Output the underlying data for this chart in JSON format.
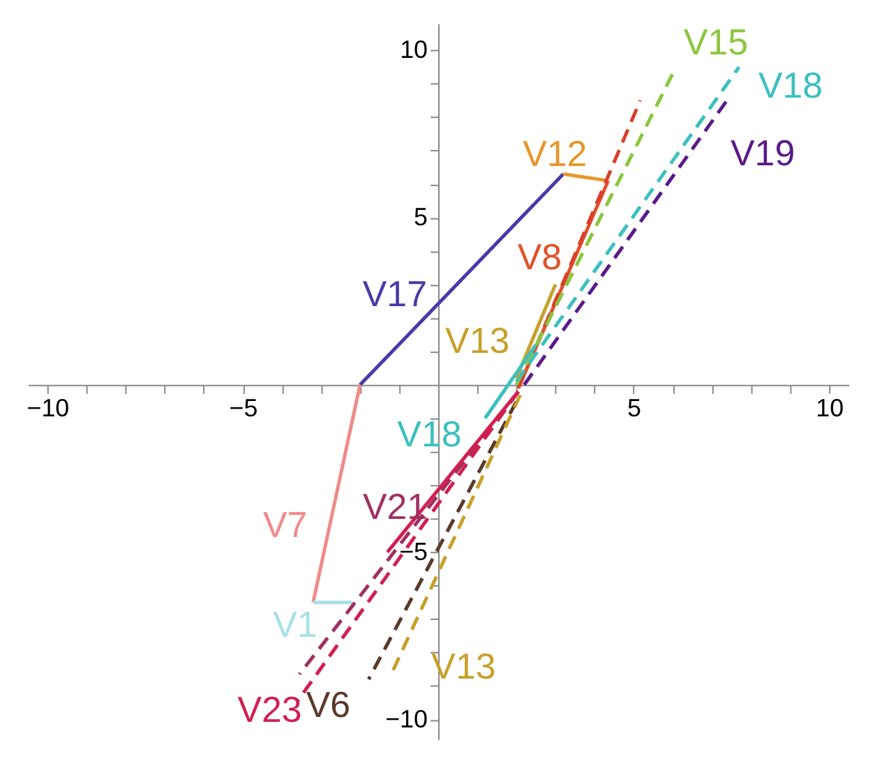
{
  "chart_data": {
    "type": "line",
    "xlim": [
      -10.5,
      10.5
    ],
    "ylim": [
      -10.6,
      10.8
    ],
    "xticks": [
      {
        "value": -10,
        "label": "−10"
      },
      {
        "value": -9,
        "label": null
      },
      {
        "value": -8,
        "label": null
      },
      {
        "value": -7,
        "label": null
      },
      {
        "value": -6,
        "label": null
      },
      {
        "value": -5,
        "label": "−5"
      },
      {
        "value": -4,
        "label": null
      },
      {
        "value": -3,
        "label": null
      },
      {
        "value": -2,
        "label": null
      },
      {
        "value": -1,
        "label": null
      },
      {
        "value": 1,
        "label": null
      },
      {
        "value": 2,
        "label": null
      },
      {
        "value": 3,
        "label": null
      },
      {
        "value": 4,
        "label": null
      },
      5,
      {
        "value": 6,
        "label": null
      },
      {
        "value": 7,
        "label": null
      },
      {
        "value": 8,
        "label": null
      },
      {
        "value": 9,
        "label": null
      },
      10
    ],
    "yticks": [
      {
        "value": -10,
        "label": "−10"
      },
      {
        "value": -9,
        "label": null
      },
      {
        "value": -8,
        "label": null
      },
      {
        "value": -7,
        "label": null
      },
      {
        "value": -6,
        "label": null
      },
      {
        "value": -5,
        "label": "−5"
      },
      {
        "value": -4,
        "label": null
      },
      {
        "value": -3,
        "label": null
      },
      {
        "value": -2,
        "label": null
      },
      {
        "value": -1,
        "label": null
      },
      {
        "value": 1,
        "label": null
      },
      {
        "value": 2,
        "label": null
      },
      {
        "value": 3,
        "label": null
      },
      {
        "value": 4,
        "label": null
      },
      5,
      {
        "value": 6,
        "label": null
      },
      {
        "value": 7,
        "label": null
      },
      {
        "value": 8,
        "label": null
      },
      {
        "value": 9,
        "label": null
      },
      10
    ],
    "grid": false,
    "series": [
      {
        "name": "V17",
        "color": "#4a3aa8",
        "x": [
          -2,
          3.2
        ],
        "values": [
          0,
          6.3
        ],
        "line_style": "solid"
      },
      {
        "name": "V12",
        "color": "#e8962a",
        "x": [
          3.2,
          4.35
        ],
        "values": [
          6.3,
          6.1
        ],
        "line_style": "solid"
      },
      {
        "name": "V8",
        "color": "#e0502a",
        "x": [
          4.35,
          2.05
        ],
        "values": [
          6.1,
          -0.1
        ],
        "line_style": "solid"
      },
      {
        "color": "#d9402a",
        "x": [
          2.05,
          5.17
        ],
        "values": [
          -0.1,
          8.5
        ],
        "line_style": "dashed"
      },
      {
        "name": "V15",
        "color": "#8cc63e",
        "x": [
          2.0,
          6.0
        ],
        "values": [
          0.0,
          9.3
        ],
        "line_style": "dashed"
      },
      {
        "name": "V18",
        "color": "#3cc0c0",
        "x": [
          2.0,
          7.7
        ],
        "values": [
          0.1,
          9.5
        ],
        "line_style": "dashed"
      },
      {
        "name": "V19",
        "color": "#5a1a8a",
        "x": [
          2.2,
          7.45
        ],
        "values": [
          0.0,
          8.6
        ],
        "line_style": "dashed"
      },
      {
        "name": "V13",
        "color": "#c8a02a",
        "x": [
          2.0,
          3.0
        ],
        "values": [
          0.2,
          3.0
        ],
        "line_style": "solid"
      },
      {
        "name": "V7",
        "color": "#f08a8a",
        "x": [
          -2,
          -3.2
        ],
        "values": [
          0,
          -6.5
        ],
        "line_style": "solid"
      },
      {
        "name": "V1",
        "color": "#a8e0e8",
        "x": [
          -3.2,
          -2.2
        ],
        "values": [
          -6.5,
          -6.5
        ],
        "line_style": "solid"
      },
      {
        "name": "V21",
        "color": "#a03060",
        "x": [
          2.05,
          -3.55
        ],
        "values": [
          -0.2,
          -8.65
        ],
        "line_style": "dashed"
      },
      {
        "name": "V23",
        "color": "#d02050",
        "x": [
          2.05,
          -3.6
        ],
        "values": [
          -0.2,
          -9.45
        ],
        "line_style": "dashed"
      },
      {
        "color": "#d02050",
        "x": [
          2.05,
          -1.3
        ],
        "values": [
          -0.2,
          -5.0
        ],
        "line_style": "solid"
      },
      {
        "name": "V6",
        "color": "#5a3a2a",
        "x": [
          2.0,
          -1.78
        ],
        "values": [
          -0.5,
          -8.8
        ],
        "line_style": "dashed"
      },
      {
        "name": "V13",
        "color": "#c8a02a",
        "x": [
          2.1,
          -1.2
        ],
        "values": [
          -0.3,
          -8.65
        ],
        "line_style": "dashed"
      },
      {
        "name": "V18",
        "color": "#3cc0c0",
        "x": [
          1.2,
          2.5
        ],
        "values": [
          -1.0,
          1.2
        ],
        "line_style": "solid"
      }
    ]
  }
}
